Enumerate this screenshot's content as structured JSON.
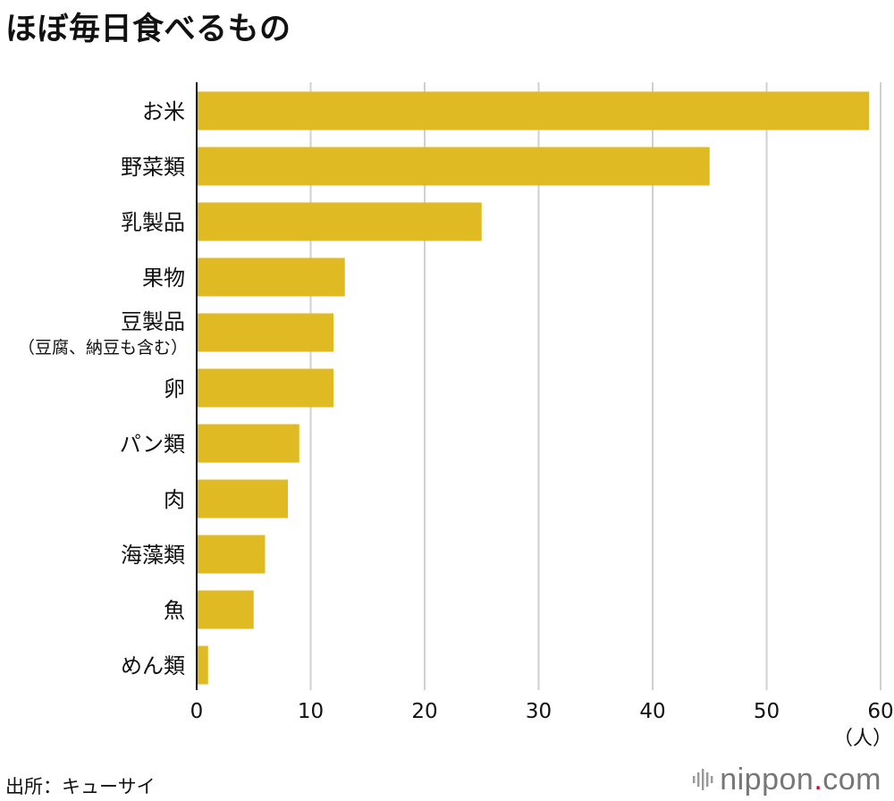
{
  "title": "ほぼ毎日食べるもの",
  "source": "出所：キューサイ",
  "logo": {
    "text_a": "nippon",
    "dot": ".",
    "text_b": "com"
  },
  "colors": {
    "bar": "#e0ba22",
    "grid": "#d0d0d0",
    "axis": "#111111",
    "logo_dot": "#d7002a"
  },
  "chart_data": {
    "type": "bar",
    "orientation": "horizontal",
    "title": "ほぼ毎日食べるもの",
    "xlabel": "（人）",
    "ylabel": "",
    "xlim": [
      0,
      60
    ],
    "xticks": [
      0,
      10,
      20,
      30,
      40,
      50,
      60
    ],
    "grid": true,
    "categories": [
      {
        "label": "お米",
        "value": 59
      },
      {
        "label": "野菜類",
        "value": 45
      },
      {
        "label": "乳製品",
        "value": 25
      },
      {
        "label": "果物",
        "value": 13
      },
      {
        "label": "豆製品",
        "sublabel": "（豆腐、納豆も含む）",
        "value": 12
      },
      {
        "label": "卵",
        "value": 12
      },
      {
        "label": "パン類",
        "value": 9
      },
      {
        "label": "肉",
        "value": 8
      },
      {
        "label": "海藻類",
        "value": 6
      },
      {
        "label": "魚",
        "value": 5
      },
      {
        "label": "めん類",
        "value": 1
      }
    ]
  }
}
